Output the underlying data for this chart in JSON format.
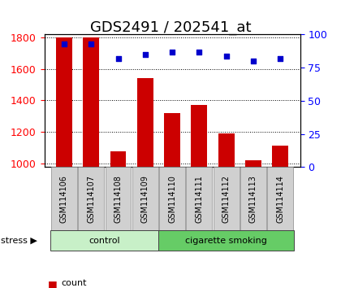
{
  "title": "GDS2491 / 202541_at",
  "samples": [
    "GSM114106",
    "GSM114107",
    "GSM114108",
    "GSM114109",
    "GSM114110",
    "GSM114111",
    "GSM114112",
    "GSM114113",
    "GSM114114"
  ],
  "counts": [
    1800,
    1800,
    1075,
    1540,
    1320,
    1370,
    1190,
    1020,
    1110
  ],
  "percentile_ranks": [
    93,
    93,
    82,
    85,
    87,
    87,
    84,
    80,
    82
  ],
  "ylim_left": [
    975,
    1820
  ],
  "ylim_right": [
    0,
    100
  ],
  "yticks_left": [
    1000,
    1200,
    1400,
    1600,
    1800
  ],
  "yticks_right": [
    0,
    25,
    50,
    75,
    100
  ],
  "groups": [
    {
      "label": "control",
      "indices": [
        0,
        1,
        2,
        3
      ],
      "color": "#c8f0c8"
    },
    {
      "label": "cigarette smoking",
      "indices": [
        4,
        5,
        6,
        7,
        8
      ],
      "color": "#66cc66"
    }
  ],
  "stress_label": "stress",
  "bar_color": "#cc0000",
  "dot_color": "#0000cc",
  "bar_bottom": 975,
  "grid_color": "#000000",
  "background_color": "#ffffff",
  "plot_bg_color": "#ffffff",
  "title_fontsize": 13,
  "tick_fontsize": 9,
  "label_fontsize": 9
}
